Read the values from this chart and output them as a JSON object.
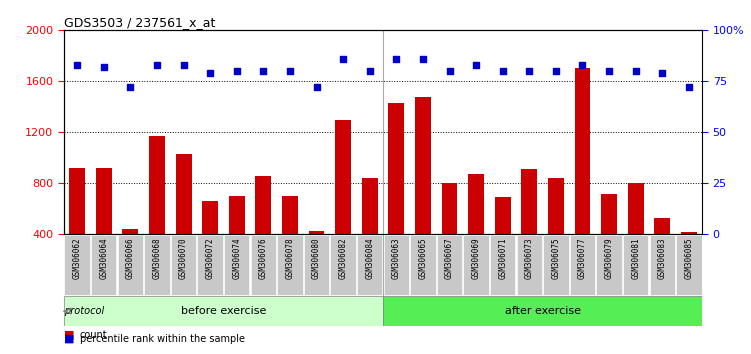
{
  "title": "GDS3503 / 237561_x_at",
  "categories": [
    "GSM306062",
    "GSM306064",
    "GSM306066",
    "GSM306068",
    "GSM306070",
    "GSM306072",
    "GSM306074",
    "GSM306076",
    "GSM306078",
    "GSM306080",
    "GSM306082",
    "GSM306084",
    "GSM306063",
    "GSM306065",
    "GSM306067",
    "GSM306069",
    "GSM306071",
    "GSM306073",
    "GSM306075",
    "GSM306077",
    "GSM306079",
    "GSM306081",
    "GSM306083",
    "GSM306085"
  ],
  "bar_values": [
    920,
    920,
    440,
    1170,
    1030,
    660,
    700,
    860,
    700,
    430,
    1300,
    840,
    1430,
    1480,
    800,
    870,
    690,
    910,
    840,
    1700,
    720,
    800,
    530,
    420
  ],
  "percentile_values": [
    83,
    82,
    72,
    83,
    83,
    79,
    80,
    80,
    80,
    72,
    86,
    80,
    86,
    86,
    80,
    83,
    80,
    80,
    80,
    83,
    80,
    80,
    79,
    72
  ],
  "before_count": 12,
  "after_count": 12,
  "bar_color": "#cc0000",
  "dot_color": "#0000cc",
  "before_color": "#ccffcc",
  "after_color": "#55ee55",
  "xtick_bg": "#c8c8c8",
  "protocol_label": "protocol",
  "before_label": "before exercise",
  "after_label": "after exercise",
  "ylim_left": [
    400,
    2000
  ],
  "ylim_right": [
    0,
    100
  ],
  "yticks_left": [
    400,
    800,
    1200,
    1600,
    2000
  ],
  "yticks_right": [
    0,
    25,
    50,
    75,
    100
  ],
  "grid_values": [
    800,
    1200,
    1600
  ],
  "background_color": "#ffffff"
}
